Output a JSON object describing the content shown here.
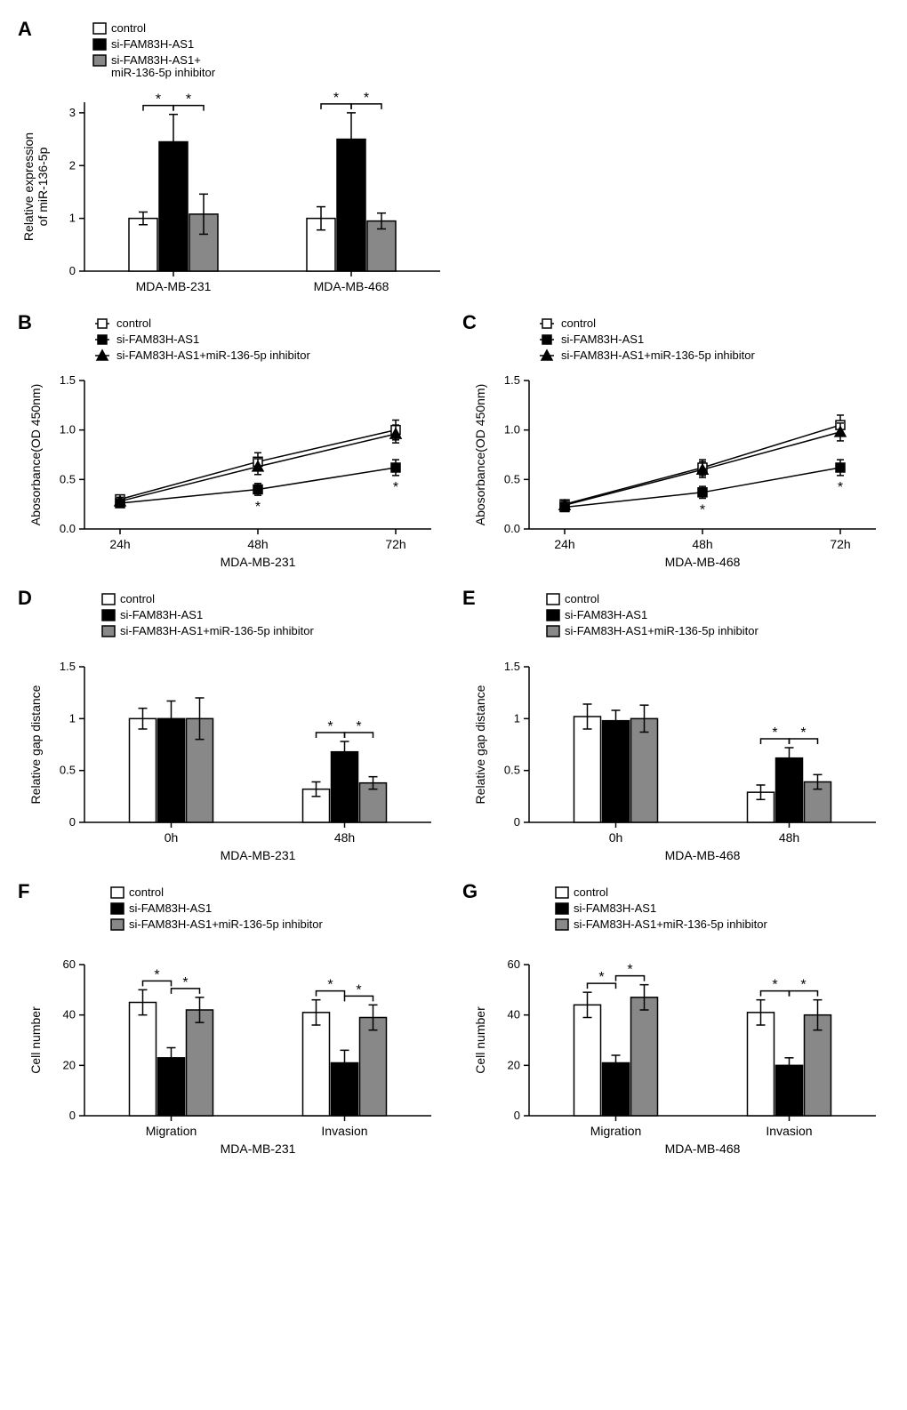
{
  "panels": {
    "A": {
      "type": "bar",
      "label": "A",
      "ylabel": "Relative expression\nof  miR-136-5p",
      "categories": [
        "MDA-MB-231",
        "MDA-MB-468"
      ],
      "groups": [
        "control",
        "si-FAM83H-AS1",
        "si-FAM83H-AS1+\nmiR-136-5p inhibitor"
      ],
      "yticks": [
        0,
        1,
        2,
        3
      ],
      "ylim": [
        0,
        3.2
      ],
      "colors": {
        "control": "#ffffff",
        "si": "#000000",
        "sim": "#888888"
      },
      "data": {
        "MDA-MB-231": {
          "control": {
            "v": 1.0,
            "e": 0.12
          },
          "si": {
            "v": 2.45,
            "e": 0.52
          },
          "sim": {
            "v": 1.08,
            "e": 0.38
          }
        },
        "MDA-MB-468": {
          "control": {
            "v": 1.0,
            "e": 0.22
          },
          "si": {
            "v": 2.5,
            "e": 0.5
          },
          "sim": {
            "v": 0.95,
            "e": 0.15
          }
        }
      },
      "sig_pairs": [
        {
          "cat": "MDA-MB-231",
          "a": 0,
          "b": 1,
          "label": "*"
        },
        {
          "cat": "MDA-MB-231",
          "a": 1,
          "b": 2,
          "label": "*"
        },
        {
          "cat": "MDA-MB-468",
          "a": 0,
          "b": 1,
          "label": "*"
        },
        {
          "cat": "MDA-MB-468",
          "a": 1,
          "b": 2,
          "label": "*"
        }
      ]
    },
    "B": {
      "type": "line",
      "label": "B",
      "ylabel": "Abosorbance(OD 450nm)",
      "xcats": [
        "24h",
        "48h",
        "72h"
      ],
      "under_label": "MDA-MB-231",
      "yticks": [
        0.0,
        0.5,
        1.0,
        1.5
      ],
      "ylim": [
        0.0,
        1.5
      ],
      "groups": [
        "control",
        "si-FAM83H-AS1",
        "si-FAM83H-AS1+miR-136-5p inhibitor"
      ],
      "series": {
        "control": {
          "marker": "sq-open",
          "pts": [
            {
              "v": 0.3,
              "e": 0.04
            },
            {
              "v": 0.68,
              "e": 0.09
            },
            {
              "v": 1.0,
              "e": 0.1
            }
          ]
        },
        "si": {
          "marker": "sq-solid",
          "pts": [
            {
              "v": 0.26,
              "e": 0.04
            },
            {
              "v": 0.4,
              "e": 0.06
            },
            {
              "v": 0.62,
              "e": 0.08
            }
          ]
        },
        "sim": {
          "marker": "tri",
          "pts": [
            {
              "v": 0.28,
              "e": 0.04
            },
            {
              "v": 0.63,
              "e": 0.08
            },
            {
              "v": 0.96,
              "e": 0.09
            }
          ]
        }
      },
      "sig_points": [
        {
          "idx": 1,
          "label": "*"
        },
        {
          "idx": 2,
          "label": "*"
        }
      ]
    },
    "C": {
      "type": "line",
      "label": "C",
      "ylabel": "Abosorbance(OD 450nm)",
      "xcats": [
        "24h",
        "48h",
        "72h"
      ],
      "under_label": "MDA-MB-468",
      "yticks": [
        0.0,
        0.5,
        1.0,
        1.5
      ],
      "ylim": [
        0.0,
        1.5
      ],
      "groups": [
        "control",
        "si-FAM83H-AS1",
        "si-FAM83H-AS1+miR-136-5p inhibitor"
      ],
      "series": {
        "control": {
          "marker": "sq-open",
          "pts": [
            {
              "v": 0.25,
              "e": 0.04
            },
            {
              "v": 0.62,
              "e": 0.08
            },
            {
              "v": 1.05,
              "e": 0.1
            }
          ]
        },
        "si": {
          "marker": "sq-solid",
          "pts": [
            {
              "v": 0.22,
              "e": 0.04
            },
            {
              "v": 0.37,
              "e": 0.06
            },
            {
              "v": 0.62,
              "e": 0.08
            }
          ]
        },
        "sim": {
          "marker": "tri",
          "pts": [
            {
              "v": 0.24,
              "e": 0.04
            },
            {
              "v": 0.6,
              "e": 0.08
            },
            {
              "v": 0.98,
              "e": 0.09
            }
          ]
        }
      },
      "sig_points": [
        {
          "idx": 1,
          "label": "*"
        },
        {
          "idx": 2,
          "label": "*"
        }
      ]
    },
    "D": {
      "type": "bar",
      "label": "D",
      "ylabel": "Relative gap distance",
      "categories": [
        "0h",
        "48h"
      ],
      "under_label": "MDA-MB-231",
      "groups": [
        "control",
        "si-FAM83H-AS1",
        "si-FAM83H-AS1+miR-136-5p inhibitor"
      ],
      "yticks": [
        0,
        0.5,
        1.0,
        1.5
      ],
      "ylim": [
        0,
        1.5
      ],
      "data": {
        "0h": {
          "control": {
            "v": 1.0,
            "e": 0.1
          },
          "si": {
            "v": 1.0,
            "e": 0.17
          },
          "sim": {
            "v": 1.0,
            "e": 0.2
          }
        },
        "48h": {
          "control": {
            "v": 0.32,
            "e": 0.07
          },
          "si": {
            "v": 0.68,
            "e": 0.1
          },
          "sim": {
            "v": 0.38,
            "e": 0.06
          }
        }
      },
      "sig_pairs": [
        {
          "cat": "48h",
          "a": 0,
          "b": 1,
          "label": "*"
        },
        {
          "cat": "48h",
          "a": 1,
          "b": 2,
          "label": "*"
        }
      ]
    },
    "E": {
      "type": "bar",
      "label": "E",
      "ylabel": "Relative gap distance",
      "categories": [
        "0h",
        "48h"
      ],
      "under_label": "MDA-MB-468",
      "groups": [
        "control",
        "si-FAM83H-AS1",
        "si-FAM83H-AS1+miR-136-5p inhibitor"
      ],
      "yticks": [
        0,
        0.5,
        1.0,
        1.5
      ],
      "ylim": [
        0,
        1.5
      ],
      "data": {
        "0h": {
          "control": {
            "v": 1.02,
            "e": 0.12
          },
          "si": {
            "v": 0.98,
            "e": 0.1
          },
          "sim": {
            "v": 1.0,
            "e": 0.13
          }
        },
        "48h": {
          "control": {
            "v": 0.29,
            "e": 0.07
          },
          "si": {
            "v": 0.62,
            "e": 0.1
          },
          "sim": {
            "v": 0.39,
            "e": 0.07
          }
        }
      },
      "sig_pairs": [
        {
          "cat": "48h",
          "a": 0,
          "b": 1,
          "label": "*"
        },
        {
          "cat": "48h",
          "a": 1,
          "b": 2,
          "label": "*"
        }
      ]
    },
    "F": {
      "type": "bar",
      "label": "F",
      "ylabel": "Cell number",
      "categories": [
        "Migration",
        "Invasion"
      ],
      "under_label": "MDA-MB-231",
      "groups": [
        "control",
        "si-FAM83H-AS1",
        "si-FAM83H-AS1+miR-136-5p inhibitor"
      ],
      "yticks": [
        0,
        20,
        40,
        60
      ],
      "ylim": [
        0,
        60
      ],
      "data": {
        "Migration": {
          "control": {
            "v": 45,
            "e": 5
          },
          "si": {
            "v": 23,
            "e": 4
          },
          "sim": {
            "v": 42,
            "e": 5
          }
        },
        "Invasion": {
          "control": {
            "v": 41,
            "e": 5
          },
          "si": {
            "v": 21,
            "e": 5
          },
          "sim": {
            "v": 39,
            "e": 5
          }
        }
      },
      "sig_pairs": [
        {
          "cat": "Migration",
          "a": 0,
          "b": 1,
          "label": "*"
        },
        {
          "cat": "Migration",
          "a": 1,
          "b": 2,
          "label": "*"
        },
        {
          "cat": "Invasion",
          "a": 0,
          "b": 1,
          "label": "*"
        },
        {
          "cat": "Invasion",
          "a": 1,
          "b": 2,
          "label": "*"
        }
      ]
    },
    "G": {
      "type": "bar",
      "label": "G",
      "ylabel": "Cell number",
      "categories": [
        "Migration",
        "Invasion"
      ],
      "under_label": "MDA-MB-468",
      "groups": [
        "control",
        "si-FAM83H-AS1",
        "si-FAM83H-AS1+miR-136-5p inhibitor"
      ],
      "yticks": [
        0,
        20,
        40,
        60
      ],
      "ylim": [
        0,
        60
      ],
      "data": {
        "Migration": {
          "control": {
            "v": 44,
            "e": 5
          },
          "si": {
            "v": 21,
            "e": 3
          },
          "sim": {
            "v": 47,
            "e": 5
          }
        },
        "Invasion": {
          "control": {
            "v": 41,
            "e": 5
          },
          "si": {
            "v": 20,
            "e": 3
          },
          "sim": {
            "v": 40,
            "e": 6
          }
        }
      },
      "sig_pairs": [
        {
          "cat": "Migration",
          "a": 0,
          "b": 1,
          "label": "*"
        },
        {
          "cat": "Migration",
          "a": 1,
          "b": 2,
          "label": "*"
        },
        {
          "cat": "Invasion",
          "a": 0,
          "b": 1,
          "label": "*"
        },
        {
          "cat": "Invasion",
          "a": 1,
          "b": 2,
          "label": "*"
        }
      ]
    }
  },
  "legend_glyphs": {
    "control_box": "#ffffff",
    "si_box": "#000000",
    "sim_box": "#888888"
  }
}
